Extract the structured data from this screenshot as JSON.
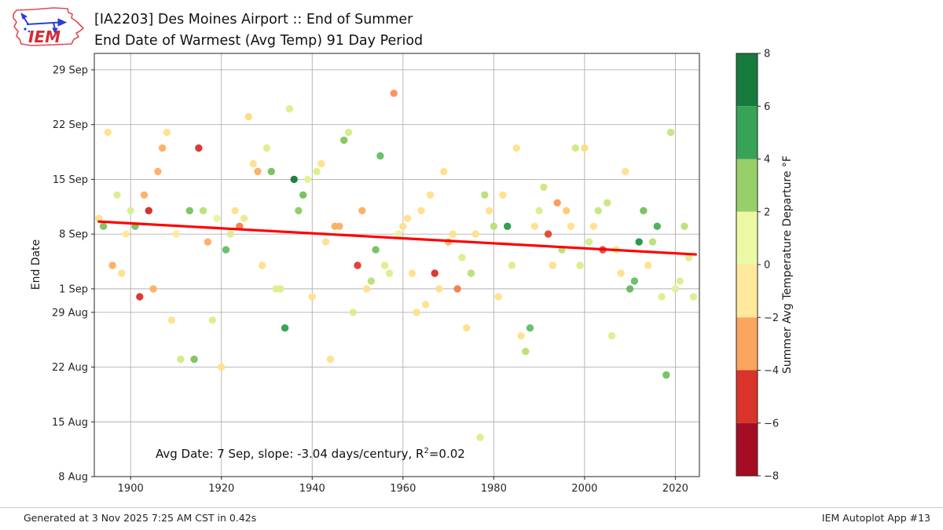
{
  "header": {
    "title_line1": "[IA2203] Des Moines Airport :: End of Summer",
    "title_line2": "End Date of Warmest (Avg Temp) 91 Day Period",
    "logo_text": "IEM"
  },
  "footer": {
    "left": "Generated at 3 Nov 2025 7:25 AM CST in 0.42s",
    "right": "IEM Autoplot App #13"
  },
  "chart_data": {
    "type": "scatter",
    "title": "[IA2203] Des Moines Airport :: End of Summer — End Date of Warmest (Avg Temp) 91 Day Period",
    "xlabel": "",
    "ylabel": "End Date",
    "grid": true,
    "x_range": [
      1892,
      2025.3
    ],
    "x_ticks": [
      1900,
      1920,
      1940,
      1960,
      1980,
      2000,
      2020
    ],
    "y_axis_note": "days measured after 8 Aug",
    "y_range_days": [
      0,
      54.1
    ],
    "y_ticks": [
      {
        "label": "29 Sep",
        "days": 52
      },
      {
        "label": "22 Sep",
        "days": 45
      },
      {
        "label": "15 Sep",
        "days": 38
      },
      {
        "label": "8 Sep",
        "days": 31
      },
      {
        "label": "1 Sep",
        "days": 24
      },
      {
        "label": "29 Aug",
        "days": 21
      },
      {
        "label": "22 Aug",
        "days": 14
      },
      {
        "label": "15 Aug",
        "days": 7
      },
      {
        "label": "8 Aug",
        "days": 0
      }
    ],
    "annotation": {
      "before_sup": "Avg Date: 7 Sep, slope: -3.04 days/century, R",
      "sup": "2",
      "after_sup": "=0.02"
    },
    "trend_line": {
      "color": "#ff0000",
      "x1": 1893,
      "days1": 32.6,
      "x2": 2024.5,
      "days2": 28.4
    },
    "colorbar": {
      "label": "Summer Avg Temperature Departure °F",
      "range": [
        -8,
        8
      ],
      "ticks": [
        {
          "label": "8",
          "v": 8
        },
        {
          "label": "6",
          "v": 6
        },
        {
          "label": "4",
          "v": 4
        },
        {
          "label": "2",
          "v": 2
        },
        {
          "label": "0",
          "v": 0
        },
        {
          "label": "−2",
          "v": -2
        },
        {
          "label": "−4",
          "v": -4
        },
        {
          "label": "−6",
          "v": -6
        },
        {
          "label": "−8",
          "v": -8
        }
      ],
      "bands": [
        {
          "from": 6,
          "to": 8,
          "color": "#167a3c"
        },
        {
          "from": 4,
          "to": 6,
          "color": "#36a357"
        },
        {
          "from": 2,
          "to": 4,
          "color": "#97cf68"
        },
        {
          "from": 0,
          "to": 2,
          "color": "#edf8a5"
        },
        {
          "from": -2,
          "to": 0,
          "color": "#fee89b"
        },
        {
          "from": -4,
          "to": -2,
          "color": "#fba55e"
        },
        {
          "from": -6,
          "to": -4,
          "color": "#d93429"
        },
        {
          "from": -8,
          "to": -6,
          "color": "#a50d24"
        }
      ]
    },
    "points_format": [
      "year",
      "end_date",
      "days_after_8_aug",
      "marker_color"
    ],
    "points": [
      [
        1893,
        "10 Sep",
        33,
        "#fee08b"
      ],
      [
        1894,
        "9 Sep",
        32,
        "#7fc15e"
      ],
      [
        1895,
        "21 Sep",
        44,
        "#fee08b"
      ],
      [
        1896,
        "4 Sep",
        27,
        "#fdae61"
      ],
      [
        1897,
        "13 Sep",
        36,
        "#d9ef8b"
      ],
      [
        1898,
        "3 Sep",
        26,
        "#fee08b"
      ],
      [
        1899,
        "8 Sep",
        31,
        "#fee999"
      ],
      [
        1900,
        "11 Sep",
        34,
        "#d9ef8b"
      ],
      [
        1901,
        "9 Sep",
        32,
        "#74c05c"
      ],
      [
        1902,
        "31 Aug",
        23,
        "#d73027"
      ],
      [
        1903,
        "13 Sep",
        36,
        "#fdae61"
      ],
      [
        1904,
        "11 Sep",
        34,
        "#cf2b27"
      ],
      [
        1905,
        "1 Sep",
        24,
        "#fdae61"
      ],
      [
        1906,
        "16 Sep",
        39,
        "#fdae61"
      ],
      [
        1907,
        "19 Sep",
        42,
        "#fdae61"
      ],
      [
        1908,
        "21 Sep",
        44,
        "#fee08b"
      ],
      [
        1909,
        "28 Aug",
        20,
        "#fee08b"
      ],
      [
        1910,
        "8 Sep",
        31,
        "#fee999"
      ],
      [
        1911,
        "23 Aug",
        15,
        "#d2ea85"
      ],
      [
        1913,
        "11 Sep",
        34,
        "#7ac05f"
      ],
      [
        1914,
        "23 Aug",
        15,
        "#7ec05c"
      ],
      [
        1915,
        "19 Sep",
        42,
        "#d73027"
      ],
      [
        1916,
        "11 Sep",
        34,
        "#b8e175"
      ],
      [
        1917,
        "7 Sep",
        30,
        "#fdae61"
      ],
      [
        1918,
        "28 Aug",
        20,
        "#d9ef8b"
      ],
      [
        1919,
        "10 Sep",
        33,
        "#e8f59e"
      ],
      [
        1920,
        "22 Aug",
        14,
        "#fee08b"
      ],
      [
        1921,
        "6 Sep",
        29,
        "#66bd63"
      ],
      [
        1922,
        "8 Sep",
        31,
        "#d9ef8b"
      ],
      [
        1923,
        "11 Sep",
        34,
        "#fee08b"
      ],
      [
        1924,
        "9 Sep",
        32,
        "#f67c44"
      ],
      [
        1925,
        "10 Sep",
        33,
        "#e3ee8e"
      ],
      [
        1926,
        "23 Sep",
        46,
        "#fdd981"
      ],
      [
        1927,
        "17 Sep",
        40,
        "#fee08b"
      ],
      [
        1928,
        "16 Sep",
        39,
        "#fdae61"
      ],
      [
        1929,
        "4 Sep",
        27,
        "#fee08b"
      ],
      [
        1930,
        "19 Sep",
        42,
        "#d9ef8b"
      ],
      [
        1931,
        "16 Sep",
        39,
        "#74c05c"
      ],
      [
        1932,
        "1 Sep",
        24,
        "#d9ef8b"
      ],
      [
        1933,
        "1 Sep",
        24,
        "#d9ef8b"
      ],
      [
        1934,
        "27 Aug",
        19,
        "#2e9e4e"
      ],
      [
        1935,
        "24 Sep",
        47,
        "#d9ef8b"
      ],
      [
        1936,
        "15 Sep",
        38,
        "#17793a"
      ],
      [
        1937,
        "11 Sep",
        34,
        "#8ccc62"
      ],
      [
        1938,
        "13 Sep",
        36,
        "#74c05c"
      ],
      [
        1939,
        "15 Sep",
        38,
        "#e4f392"
      ],
      [
        1940,
        "31 Aug",
        23,
        "#fee08b"
      ],
      [
        1941,
        "16 Sep",
        39,
        "#d9ef8b"
      ],
      [
        1942,
        "17 Sep",
        40,
        "#fee08b"
      ],
      [
        1943,
        "7 Sep",
        30,
        "#fee08b"
      ],
      [
        1944,
        "23 Aug",
        15,
        "#fee08b"
      ],
      [
        1945,
        "9 Sep",
        32,
        "#fdae61"
      ],
      [
        1946,
        "9 Sep",
        32,
        "#fdae61"
      ],
      [
        1947,
        "20 Sep",
        43,
        "#82c560"
      ],
      [
        1948,
        "21 Sep",
        44,
        "#d3ec86"
      ],
      [
        1949,
        "29 Aug",
        21,
        "#d9ef8b"
      ],
      [
        1950,
        "4 Sep",
        27,
        "#dd3b2b"
      ],
      [
        1951,
        "11 Sep",
        34,
        "#fdae61"
      ],
      [
        1952,
        "1 Sep",
        24,
        "#fee08b"
      ],
      [
        1953,
        "2 Sep",
        25,
        "#b7e075"
      ],
      [
        1954,
        "6 Sep",
        29,
        "#74c05c"
      ],
      [
        1955,
        "18 Sep",
        41,
        "#66bd63"
      ],
      [
        1956,
        "4 Sep",
        27,
        "#d9ef8b"
      ],
      [
        1957,
        "3 Sep",
        26,
        "#d9ef8b"
      ],
      [
        1958,
        "26 Sep",
        49,
        "#fa8e5d"
      ],
      [
        1959,
        "8 Sep",
        31,
        "#e8f4a0"
      ],
      [
        1960,
        "9 Sep",
        32,
        "#fee08b"
      ],
      [
        1961,
        "10 Sep",
        33,
        "#fee08b"
      ],
      [
        1962,
        "3 Sep",
        26,
        "#fee08b"
      ],
      [
        1963,
        "29 Aug",
        21,
        "#fee08b"
      ],
      [
        1964,
        "11 Sep",
        34,
        "#fee08b"
      ],
      [
        1965,
        "30 Aug",
        22,
        "#fee08b"
      ],
      [
        1966,
        "13 Sep",
        36,
        "#fee08b"
      ],
      [
        1967,
        "3 Sep",
        26,
        "#d73027"
      ],
      [
        1968,
        "1 Sep",
        24,
        "#fee08b"
      ],
      [
        1969,
        "16 Sep",
        39,
        "#fee08b"
      ],
      [
        1970,
        "7 Sep",
        30,
        "#fdae61"
      ],
      [
        1971,
        "8 Sep",
        31,
        "#fee08b"
      ],
      [
        1972,
        "1 Sep",
        24,
        "#f67b49"
      ],
      [
        1973,
        "5 Sep",
        28,
        "#d9ef8b"
      ],
      [
        1974,
        "27 Aug",
        19,
        "#fee08b"
      ],
      [
        1975,
        "3 Sep",
        26,
        "#b8e075"
      ],
      [
        1976,
        "8 Sep",
        31,
        "#fee08b"
      ],
      [
        1977,
        "13 Aug",
        5,
        "#d9ef8b"
      ],
      [
        1978,
        "13 Sep",
        36,
        "#b8e075"
      ],
      [
        1979,
        "11 Sep",
        34,
        "#fee08b"
      ],
      [
        1980,
        "9 Sep",
        32,
        "#b8e075"
      ],
      [
        1981,
        "31 Aug",
        23,
        "#fee08b"
      ],
      [
        1982,
        "13 Sep",
        36,
        "#fee08b"
      ],
      [
        1983,
        "9 Sep",
        32,
        "#239e47"
      ],
      [
        1984,
        "4 Sep",
        27,
        "#d9ef8b"
      ],
      [
        1985,
        "19 Sep",
        42,
        "#fee08b"
      ],
      [
        1986,
        "26 Aug",
        18,
        "#fee08b"
      ],
      [
        1987,
        "24 Aug",
        16,
        "#b8e075"
      ],
      [
        1988,
        "27 Aug",
        19,
        "#66bd63"
      ],
      [
        1989,
        "9 Sep",
        32,
        "#fee08b"
      ],
      [
        1990,
        "11 Sep",
        34,
        "#d9ef8b"
      ],
      [
        1991,
        "14 Sep",
        37,
        "#c9e880"
      ],
      [
        1992,
        "8 Sep",
        31,
        "#e04430"
      ],
      [
        1993,
        "4 Sep",
        27,
        "#fee08b"
      ],
      [
        1994,
        "12 Sep",
        35,
        "#fa9856"
      ],
      [
        1995,
        "6 Sep",
        29,
        "#b8e075"
      ],
      [
        1996,
        "11 Sep",
        34,
        "#fec876"
      ],
      [
        1997,
        "9 Sep",
        32,
        "#fee08b"
      ],
      [
        1998,
        "19 Sep",
        42,
        "#cdea82"
      ],
      [
        1999,
        "4 Sep",
        27,
        "#d9ef8b"
      ],
      [
        2000,
        "19 Sep",
        42,
        "#fddc84"
      ],
      [
        2001,
        "7 Sep",
        30,
        "#d3ec86"
      ],
      [
        2002,
        "9 Sep",
        32,
        "#fee08b"
      ],
      [
        2003,
        "11 Sep",
        34,
        "#c6e77e"
      ],
      [
        2004,
        "6 Sep",
        29,
        "#e04430"
      ],
      [
        2005,
        "12 Sep",
        35,
        "#c6e77e"
      ],
      [
        2006,
        "26 Aug",
        18,
        "#d9ef8b"
      ],
      [
        2007,
        "6 Sep",
        29,
        "#d9ef8b"
      ],
      [
        2008,
        "3 Sep",
        26,
        "#fce08a"
      ],
      [
        2009,
        "16 Sep",
        39,
        "#fee08b"
      ],
      [
        2010,
        "1 Sep",
        24,
        "#69b75e"
      ],
      [
        2011,
        "2 Sep",
        25,
        "#66bd63"
      ],
      [
        2012,
        "7 Sep",
        30,
        "#1d9641"
      ],
      [
        2013,
        "11 Sep",
        34,
        "#74c05c"
      ],
      [
        2014,
        "4 Sep",
        27,
        "#fee08b"
      ],
      [
        2015,
        "7 Sep",
        30,
        "#b8e075"
      ],
      [
        2016,
        "9 Sep",
        32,
        "#4bae50"
      ],
      [
        2017,
        "31 Aug",
        23,
        "#d9ef8b"
      ],
      [
        2018,
        "21 Aug",
        13,
        "#74c05c"
      ],
      [
        2019,
        "21 Sep",
        44,
        "#c3e67d"
      ],
      [
        2020,
        "1 Sep",
        24,
        "#e2f19a"
      ],
      [
        2021,
        "2 Sep",
        25,
        "#d9ef8b"
      ],
      [
        2022,
        "9 Sep",
        32,
        "#b8e075"
      ],
      [
        2023,
        "5 Sep",
        28,
        "#d9ef8b"
      ],
      [
        2024,
        "31 Aug",
        23,
        "#d9ef8b"
      ]
    ]
  }
}
